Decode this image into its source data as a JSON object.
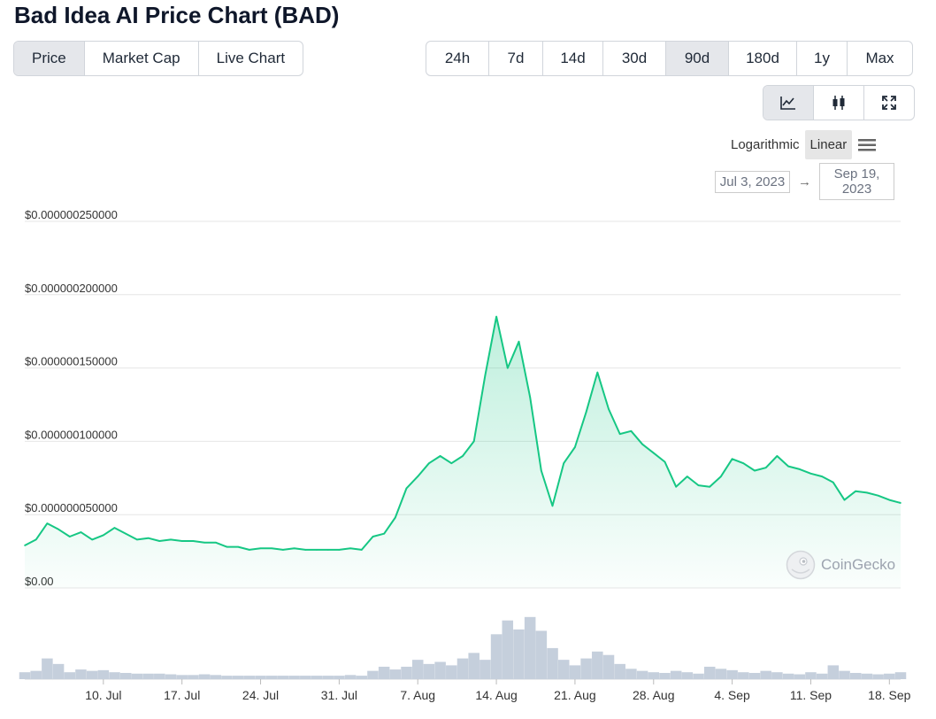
{
  "title": "Bad Idea AI Price Chart (BAD)",
  "price_tabs": [
    "Price",
    "Market Cap",
    "Live Chart"
  ],
  "price_tab_active": 0,
  "range_tabs": [
    "24h",
    "7d",
    "14d",
    "30d",
    "90d",
    "180d",
    "1y",
    "Max"
  ],
  "range_tab_active": 4,
  "chart_type_buttons": [
    {
      "icon": "line-chart-icon",
      "active": true
    },
    {
      "icon": "candlestick-icon",
      "active": false
    },
    {
      "icon": "fullscreen-icon",
      "active": false
    }
  ],
  "scale_options": [
    "Logarithmic",
    "Linear"
  ],
  "scale_active": 1,
  "date_from": "Jul 3, 2023",
  "date_to": "Sep 19, 2023",
  "date_arrow": "→",
  "watermark": "CoinGecko",
  "colors": {
    "line": "#16c784",
    "volume": "#c5cfdc",
    "active_tab": "#e5e7eb",
    "grid": "#e6e6e6"
  },
  "chart_data": {
    "type": "line",
    "title": "",
    "xlabel": "",
    "ylabel": "",
    "x_start": "2023-07-03",
    "x_end": "2023-09-19",
    "ylim": [
      0,
      2.5e-07
    ],
    "yticks": [
      {
        "value": 0,
        "label": "$0.00"
      },
      {
        "value": 5e-08,
        "label": "$0.000000050000"
      },
      {
        "value": 1e-07,
        "label": "$0.000000100000"
      },
      {
        "value": 1.5e-07,
        "label": "$0.000000150000"
      },
      {
        "value": 2e-07,
        "label": "$0.000000200000"
      },
      {
        "value": 2.5e-07,
        "label": "$0.000000250000"
      }
    ],
    "xticks": [
      {
        "x": "2023-07-10",
        "label": "10. Jul"
      },
      {
        "x": "2023-07-17",
        "label": "17. Jul"
      },
      {
        "x": "2023-07-24",
        "label": "24. Jul"
      },
      {
        "x": "2023-07-31",
        "label": "31. Jul"
      },
      {
        "x": "2023-08-07",
        "label": "7. Aug"
      },
      {
        "x": "2023-08-14",
        "label": "14. Aug"
      },
      {
        "x": "2023-08-21",
        "label": "21. Aug"
      },
      {
        "x": "2023-08-28",
        "label": "28. Aug"
      },
      {
        "x": "2023-09-04",
        "label": "4. Sep"
      },
      {
        "x": "2023-09-11",
        "label": "11. Sep"
      },
      {
        "x": "2023-09-18",
        "label": "18. Sep"
      }
    ],
    "series": [
      {
        "name": "Price",
        "x": [
          "2023-07-03",
          "2023-07-04",
          "2023-07-05",
          "2023-07-06",
          "2023-07-07",
          "2023-07-08",
          "2023-07-09",
          "2023-07-10",
          "2023-07-11",
          "2023-07-12",
          "2023-07-13",
          "2023-07-14",
          "2023-07-15",
          "2023-07-16",
          "2023-07-17",
          "2023-07-18",
          "2023-07-19",
          "2023-07-20",
          "2023-07-21",
          "2023-07-22",
          "2023-07-23",
          "2023-07-24",
          "2023-07-25",
          "2023-07-26",
          "2023-07-27",
          "2023-07-28",
          "2023-07-29",
          "2023-07-30",
          "2023-07-31",
          "2023-08-01",
          "2023-08-02",
          "2023-08-03",
          "2023-08-04",
          "2023-08-05",
          "2023-08-06",
          "2023-08-07",
          "2023-08-08",
          "2023-08-09",
          "2023-08-10",
          "2023-08-11",
          "2023-08-12",
          "2023-08-13",
          "2023-08-14",
          "2023-08-15",
          "2023-08-16",
          "2023-08-17",
          "2023-08-18",
          "2023-08-19",
          "2023-08-20",
          "2023-08-21",
          "2023-08-22",
          "2023-08-23",
          "2023-08-24",
          "2023-08-25",
          "2023-08-26",
          "2023-08-27",
          "2023-08-28",
          "2023-08-29",
          "2023-08-30",
          "2023-08-31",
          "2023-09-01",
          "2023-09-02",
          "2023-09-03",
          "2023-09-04",
          "2023-09-05",
          "2023-09-06",
          "2023-09-07",
          "2023-09-08",
          "2023-09-09",
          "2023-09-10",
          "2023-09-11",
          "2023-09-12",
          "2023-09-13",
          "2023-09-14",
          "2023-09-15",
          "2023-09-16",
          "2023-09-17",
          "2023-09-18",
          "2023-09-19"
        ],
        "values": [
          2.9e-08,
          3.3e-08,
          4.4e-08,
          4e-08,
          3.5e-08,
          3.8e-08,
          3.3e-08,
          3.6e-08,
          4.1e-08,
          3.7e-08,
          3.3e-08,
          3.4e-08,
          3.2e-08,
          3.3e-08,
          3.2e-08,
          3.2e-08,
          3.1e-08,
          3.1e-08,
          2.8e-08,
          2.8e-08,
          2.6e-08,
          2.7e-08,
          2.7e-08,
          2.6e-08,
          2.7e-08,
          2.6e-08,
          2.6e-08,
          2.6e-08,
          2.6e-08,
          2.7e-08,
          2.6e-08,
          3.5e-08,
          3.7e-08,
          4.8e-08,
          6.8e-08,
          7.6e-08,
          8.5e-08,
          9e-08,
          8.5e-08,
          9e-08,
          1e-07,
          1.45e-07,
          1.85e-07,
          1.5e-07,
          1.68e-07,
          1.3e-07,
          8e-08,
          5.6e-08,
          8.5e-08,
          9.6e-08,
          1.2e-07,
          1.47e-07,
          1.22e-07,
          1.05e-07,
          1.07e-07,
          9.8e-08,
          9.2e-08,
          8.6e-08,
          6.9e-08,
          7.6e-08,
          7e-08,
          6.9e-08,
          7.6e-08,
          8.8e-08,
          8.5e-08,
          8e-08,
          8.2e-08,
          9e-08,
          8.3e-08,
          8.1e-08,
          7.8e-08,
          7.6e-08,
          7.2e-08,
          6e-08,
          6.6e-08,
          6.5e-08,
          6.3e-08,
          6e-08,
          5.8e-08
        ]
      },
      {
        "name": "Volume",
        "x": [
          "2023-07-03",
          "2023-07-04",
          "2023-07-05",
          "2023-07-06",
          "2023-07-07",
          "2023-07-08",
          "2023-07-09",
          "2023-07-10",
          "2023-07-11",
          "2023-07-12",
          "2023-07-13",
          "2023-07-14",
          "2023-07-15",
          "2023-07-16",
          "2023-07-17",
          "2023-07-18",
          "2023-07-19",
          "2023-07-20",
          "2023-07-21",
          "2023-07-22",
          "2023-07-23",
          "2023-07-24",
          "2023-07-25",
          "2023-07-26",
          "2023-07-27",
          "2023-07-28",
          "2023-07-29",
          "2023-07-30",
          "2023-07-31",
          "2023-08-01",
          "2023-08-02",
          "2023-08-03",
          "2023-08-04",
          "2023-08-05",
          "2023-08-06",
          "2023-08-07",
          "2023-08-08",
          "2023-08-09",
          "2023-08-10",
          "2023-08-11",
          "2023-08-12",
          "2023-08-13",
          "2023-08-14",
          "2023-08-15",
          "2023-08-16",
          "2023-08-17",
          "2023-08-18",
          "2023-08-19",
          "2023-08-20",
          "2023-08-21",
          "2023-08-22",
          "2023-08-23",
          "2023-08-24",
          "2023-08-25",
          "2023-08-26",
          "2023-08-27",
          "2023-08-28",
          "2023-08-29",
          "2023-08-30",
          "2023-08-31",
          "2023-09-01",
          "2023-09-02",
          "2023-09-03",
          "2023-09-04",
          "2023-09-05",
          "2023-09-06",
          "2023-09-07",
          "2023-09-08",
          "2023-09-09",
          "2023-09-10",
          "2023-09-11",
          "2023-09-12",
          "2023-09-13",
          "2023-09-14",
          "2023-09-15",
          "2023-09-16",
          "2023-09-17",
          "2023-09-18",
          "2023-09-19"
        ],
        "relative_values": [
          0.1,
          0.12,
          0.3,
          0.22,
          0.1,
          0.14,
          0.12,
          0.13,
          0.1,
          0.09,
          0.08,
          0.08,
          0.08,
          0.07,
          0.06,
          0.06,
          0.07,
          0.06,
          0.05,
          0.05,
          0.05,
          0.05,
          0.05,
          0.05,
          0.05,
          0.05,
          0.05,
          0.05,
          0.05,
          0.06,
          0.05,
          0.12,
          0.18,
          0.14,
          0.18,
          0.28,
          0.22,
          0.25,
          0.2,
          0.3,
          0.38,
          0.28,
          0.65,
          0.85,
          0.72,
          0.9,
          0.7,
          0.45,
          0.28,
          0.2,
          0.3,
          0.4,
          0.35,
          0.22,
          0.15,
          0.12,
          0.1,
          0.09,
          0.12,
          0.1,
          0.08,
          0.18,
          0.15,
          0.13,
          0.1,
          0.09,
          0.12,
          0.1,
          0.08,
          0.07,
          0.1,
          0.08,
          0.2,
          0.12,
          0.09,
          0.08,
          0.07,
          0.08,
          0.1
        ]
      }
    ]
  }
}
